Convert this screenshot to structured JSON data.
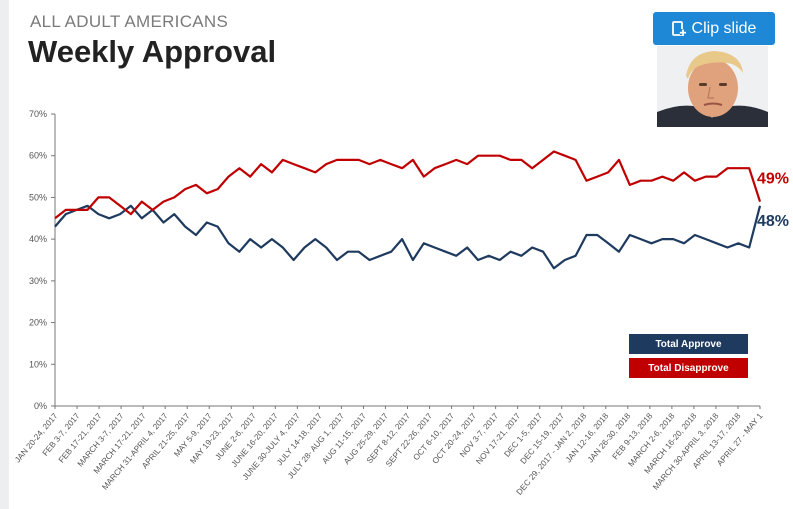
{
  "header": {
    "eyebrow": "ALL ADULT AMERICANS",
    "title": "Weekly Approval"
  },
  "toolbar": {
    "clip_label": "Clip slide",
    "clip_icon": "clip-add-icon"
  },
  "colors": {
    "approve": "#1f3a5f",
    "disapprove": "#c00000",
    "button": "#1e88d6"
  },
  "chart_data": {
    "type": "line",
    "title": "Weekly Approval",
    "ylim": [
      0,
      70
    ],
    "yticks": [
      "0%",
      "10%",
      "20%",
      "30%",
      "40%",
      "50%",
      "60%",
      "70%"
    ],
    "grid": false,
    "legend_position": "bottom-right",
    "x_labels": [
      "JAN 20-24, 2017",
      "FEB 3-7, 2017",
      "FEB 17-21, 2017",
      "MARCH 3-7, 2017",
      "MARCH 17-21, 2017",
      "MARCH 31-APRIL 4, 2017",
      "APRIL 21-25, 2017",
      "MAY 5-9, 2017",
      "MAY 19-23, 2017",
      "JUNE 2-6, 2017",
      "JUNE 16-20, 2017",
      "JUNE 30-JULY 4, 2017",
      "JULY 14-18, 2017",
      "JULY 28- AUG 1, 2017",
      "AUG 11-15, 2017",
      "AUG 25-29, 2017",
      "SEPT 8-12, 2017",
      "SEPT 22-26, 2017",
      "OCT 6-10, 2017",
      "OCT 20-24, 2017",
      "NOV 3-7, 2017",
      "NOV 17-21, 2017",
      "DEC 1-5, 2017",
      "DEC 15-19, 2017",
      "DEC 29, 2017 - JAN 2, 2018",
      "JAN 12-16, 2018",
      "JAN 26-30, 2018",
      "FEB 9-13, 2018",
      "MARCH 2-6, 2018",
      "MARCH 16-20, 2018",
      "MARCH 30-APRIL 3, 2018",
      "APRIL 13-17, 2018",
      "APRIL 27 - MAY 1"
    ],
    "series": [
      {
        "name": "Total Approve",
        "color": "#1f3a5f",
        "end_label": "48%",
        "values": [
          43,
          46,
          47,
          48,
          46,
          45,
          46,
          48,
          45,
          47,
          44,
          46,
          43,
          41,
          44,
          43,
          39,
          37,
          40,
          38,
          40,
          38,
          35,
          38,
          40,
          38,
          35,
          37,
          37,
          35,
          36,
          37,
          40,
          35,
          39,
          38,
          37,
          36,
          38,
          35,
          36,
          35,
          37,
          36,
          38,
          37,
          33,
          35,
          36,
          41,
          41,
          39,
          37,
          41,
          40,
          39,
          40,
          40,
          39,
          41,
          40,
          39,
          38,
          39,
          38,
          48
        ]
      },
      {
        "name": "Total Disapprove",
        "color": "#c00000",
        "end_label": "49%",
        "values": [
          45,
          47,
          47,
          47,
          50,
          50,
          48,
          46,
          49,
          47,
          49,
          50,
          52,
          53,
          51,
          52,
          55,
          57,
          55,
          58,
          56,
          59,
          58,
          57,
          56,
          58,
          59,
          59,
          59,
          58,
          59,
          58,
          57,
          59,
          55,
          57,
          58,
          59,
          58,
          60,
          60,
          60,
          59,
          59,
          57,
          59,
          61,
          60,
          59,
          54,
          55,
          56,
          59,
          53,
          54,
          54,
          55,
          54,
          56,
          54,
          55,
          55,
          57,
          57,
          57,
          49
        ]
      }
    ]
  }
}
